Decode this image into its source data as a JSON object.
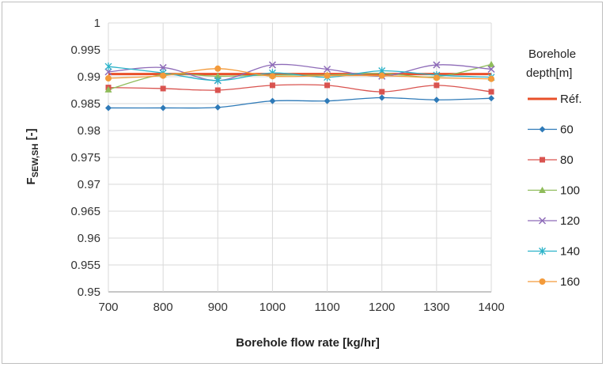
{
  "chart_data": {
    "type": "line",
    "x": [
      700,
      800,
      900,
      1000,
      1100,
      1200,
      1300,
      1400
    ],
    "xlim": [
      700,
      1400
    ],
    "ylim": [
      0.95,
      1.0
    ],
    "x_ticks": [
      "700",
      "800",
      "900",
      "1000",
      "1100",
      "1200",
      "1300",
      "1400"
    ],
    "y_ticks": [
      "0.95",
      "0.955",
      "0.96",
      "0.965",
      "0.97",
      "0.975",
      "0.98",
      "0.985",
      "0.99",
      "0.995",
      "1"
    ],
    "xlabel": "Borehole flow rate [kg/hr]",
    "ylabel_main": "F",
    "ylabel_sub": "SEW,SH",
    "ylabel_unit": " [-]",
    "legend_title_line1": "Borehole",
    "legend_title_line2": "depth[m]",
    "legend_position": "right",
    "grid": true,
    "series": [
      {
        "name": "Réf.",
        "color": "#e8502a",
        "marker": "none",
        "values": [
          0.9905,
          0.9905,
          0.9905,
          0.9905,
          0.9905,
          0.9905,
          0.9905,
          0.9905
        ]
      },
      {
        "name": "60",
        "color": "#2e7ab8",
        "marker": "diamond",
        "values": [
          0.9842,
          0.9842,
          0.9843,
          0.9855,
          0.9855,
          0.9861,
          0.9857,
          0.986
        ]
      },
      {
        "name": "80",
        "color": "#d9534f",
        "marker": "square",
        "values": [
          0.988,
          0.9878,
          0.9875,
          0.9884,
          0.9884,
          0.9872,
          0.9884,
          0.9872
        ]
      },
      {
        "name": "100",
        "color": "#8fbc5a",
        "marker": "triangle",
        "values": [
          0.9876,
          0.9904,
          0.9901,
          0.9903,
          0.9903,
          0.9906,
          0.99,
          0.9923
        ]
      },
      {
        "name": "120",
        "color": "#8e6bb8",
        "marker": "x",
        "values": [
          0.9909,
          0.9917,
          0.9893,
          0.9922,
          0.9914,
          0.9901,
          0.9922,
          0.9914
        ]
      },
      {
        "name": "140",
        "color": "#2bb3c9",
        "marker": "star",
        "values": [
          0.9919,
          0.9907,
          0.9893,
          0.9907,
          0.9899,
          0.9911,
          0.9903,
          0.9899
        ]
      },
      {
        "name": "160",
        "color": "#f39a3a",
        "marker": "circle",
        "values": [
          0.9897,
          0.9902,
          0.9915,
          0.9901,
          0.9902,
          0.9902,
          0.9898,
          0.9896
        ]
      }
    ]
  }
}
